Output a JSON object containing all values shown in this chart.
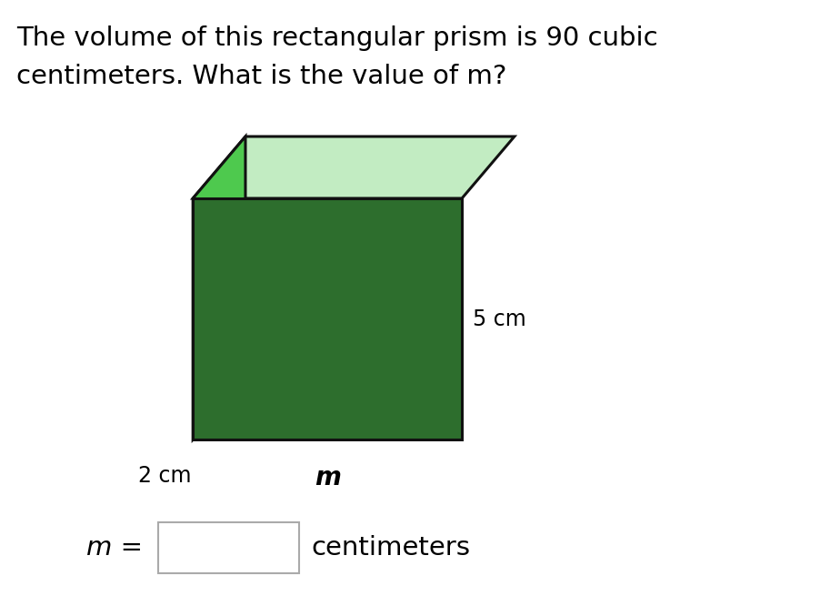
{
  "title_line1": "The volume of this rectangular prism is 90 cubic",
  "title_line2": "centimeters. What is the value of m?",
  "title_fontsize": 21,
  "title_color": "#000000",
  "background_color": "#ffffff",
  "box_question_text": "m =",
  "box_suffix_text": "centimeters",
  "label_5cm": "5 cm",
  "label_2cm": "2 cm",
  "label_m": "m",
  "front_face_color": "#2d6e2d",
  "left_face_color": "#4ec94e",
  "top_face_color": "#c2ecc2",
  "edge_color": "#111111",
  "edge_linewidth": 2.2
}
